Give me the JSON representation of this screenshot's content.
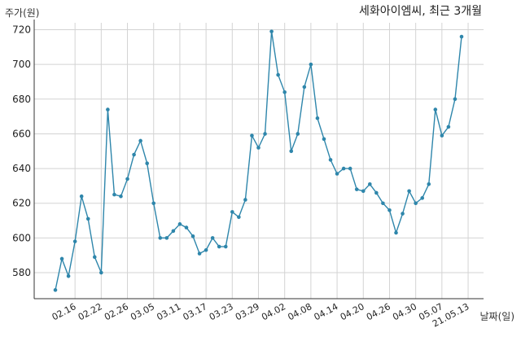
{
  "chart_data": {
    "type": "line",
    "title": "세화아이엠씨, 최근 3개월",
    "ylabel": "주가(원)",
    "xlabel": "날짜(일)",
    "ylim": [
      565,
      724
    ],
    "yticks": [
      580,
      600,
      620,
      640,
      660,
      680,
      700,
      720
    ],
    "grid": true,
    "line_color": "#2e86ab",
    "xtick_labels": [
      "02.16",
      "02.22",
      "02.26",
      "03.05",
      "03.11",
      "03.17",
      "03.23",
      "03.29",
      "04.02",
      "04.08",
      "04.14",
      "04.20",
      "04.26",
      "04.30",
      "05.07",
      "21.05.13"
    ],
    "xtick_positions": [
      3,
      7,
      11,
      15,
      19,
      23,
      27,
      31,
      35,
      39,
      43,
      47,
      51,
      55,
      59,
      63
    ],
    "series": [
      {
        "values": [
          570,
          588,
          578,
          598,
          624,
          611,
          589,
          580,
          674,
          625,
          624,
          634,
          648,
          656,
          643,
          620,
          600,
          600,
          604,
          608,
          606,
          601,
          591,
          593,
          600,
          595,
          595,
          615,
          612,
          622,
          659,
          652,
          660,
          719,
          694,
          684,
          650,
          660,
          687,
          700,
          669,
          657,
          645,
          637,
          640,
          640,
          628,
          627,
          631,
          626,
          620,
          616,
          603,
          614,
          627,
          620,
          623,
          631,
          674,
          659,
          664,
          680,
          716
        ]
      }
    ]
  }
}
